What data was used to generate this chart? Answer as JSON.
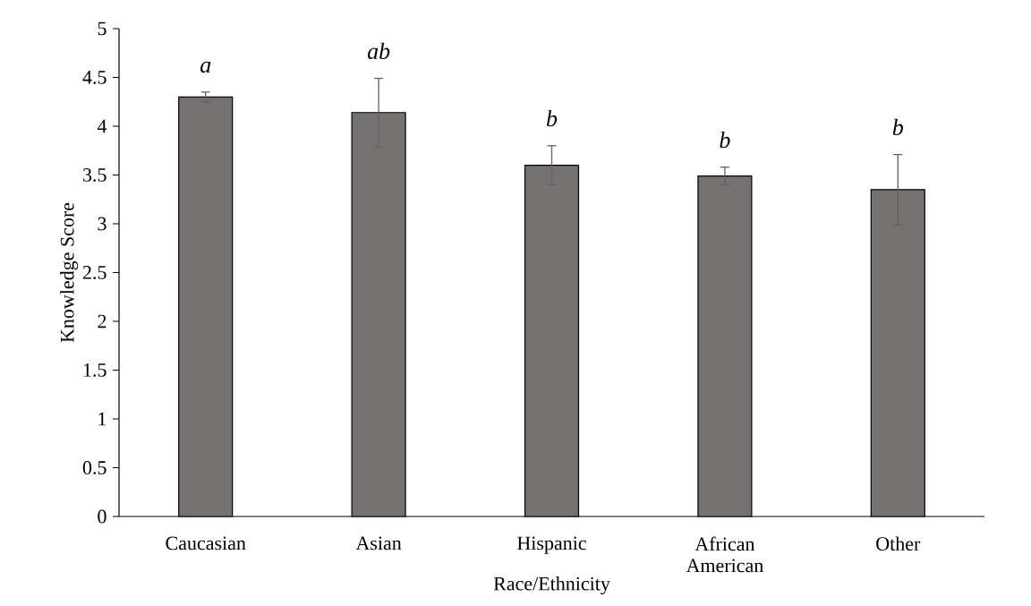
{
  "chart_data": {
    "type": "bar",
    "xlabel": "Race/Ethnicity",
    "ylabel": "Knowledge Score",
    "categories": [
      "Caucasian",
      "Asian",
      "Hispanic",
      "African American",
      "Other"
    ],
    "values": [
      4.3,
      4.14,
      3.6,
      3.49,
      3.35
    ],
    "errors": [
      0.05,
      0.35,
      0.2,
      0.09,
      0.36
    ],
    "color": "#767171",
    "ylim": [
      0,
      5
    ],
    "yticks": [
      0,
      0.5,
      1,
      1.5,
      2,
      2.5,
      3,
      3.5,
      4,
      4.5,
      5
    ],
    "annotations": [
      "a",
      "ab",
      "b",
      "b",
      "b"
    ]
  }
}
